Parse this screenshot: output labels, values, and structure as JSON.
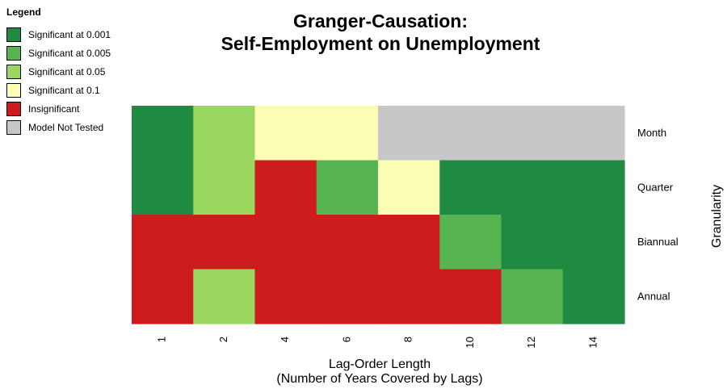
{
  "legend": {
    "title": "Legend",
    "items": [
      {
        "label": "Significant at 0.001",
        "color": "#1f8a42"
      },
      {
        "label": "Significant at 0.005",
        "color": "#57b453"
      },
      {
        "label": "Significant at 0.05",
        "color": "#9ad75f"
      },
      {
        "label": "Significant at 0.1",
        "color": "#fcfdb4"
      },
      {
        "label": "Insignificant",
        "color": "#cc1c1e"
      },
      {
        "label": "Model Not Tested",
        "color": "#c7c7c7"
      }
    ]
  },
  "chart_data": {
    "type": "heatmap",
    "title_lines": [
      "Granger-Causation:",
      "Self-Employment on Unemployment"
    ],
    "xlabel_lines": [
      "Lag-Order Length",
      "(Number of Years Covered by Lags)"
    ],
    "ylabel": "Granularity",
    "x_tick_labels": [
      "1",
      "2",
      "4",
      "6",
      "8",
      "10",
      "12",
      "14"
    ],
    "y_categories": [
      "Month",
      "Quarter",
      "Biannual",
      "Annual"
    ],
    "grid": false,
    "legend_position": "top-left",
    "cells": [
      [
        "Significant at 0.001",
        "Significant at 0.05",
        "Significant at 0.1",
        "Significant at 0.1",
        "Model Not Tested",
        "Model Not Tested",
        "Model Not Tested",
        "Model Not Tested"
      ],
      [
        "Significant at 0.001",
        "Significant at 0.05",
        "Insignificant",
        "Significant at 0.005",
        "Significant at 0.1",
        "Significant at 0.001",
        "Significant at 0.001",
        "Significant at 0.001"
      ],
      [
        "Insignificant",
        "Insignificant",
        "Insignificant",
        "Insignificant",
        "Insignificant",
        "Significant at 0.005",
        "Significant at 0.001",
        "Significant at 0.001"
      ],
      [
        "Insignificant",
        "Significant at 0.05",
        "Insignificant",
        "Insignificant",
        "Insignificant",
        "Insignificant",
        "Significant at 0.005",
        "Significant at 0.001"
      ]
    ]
  }
}
